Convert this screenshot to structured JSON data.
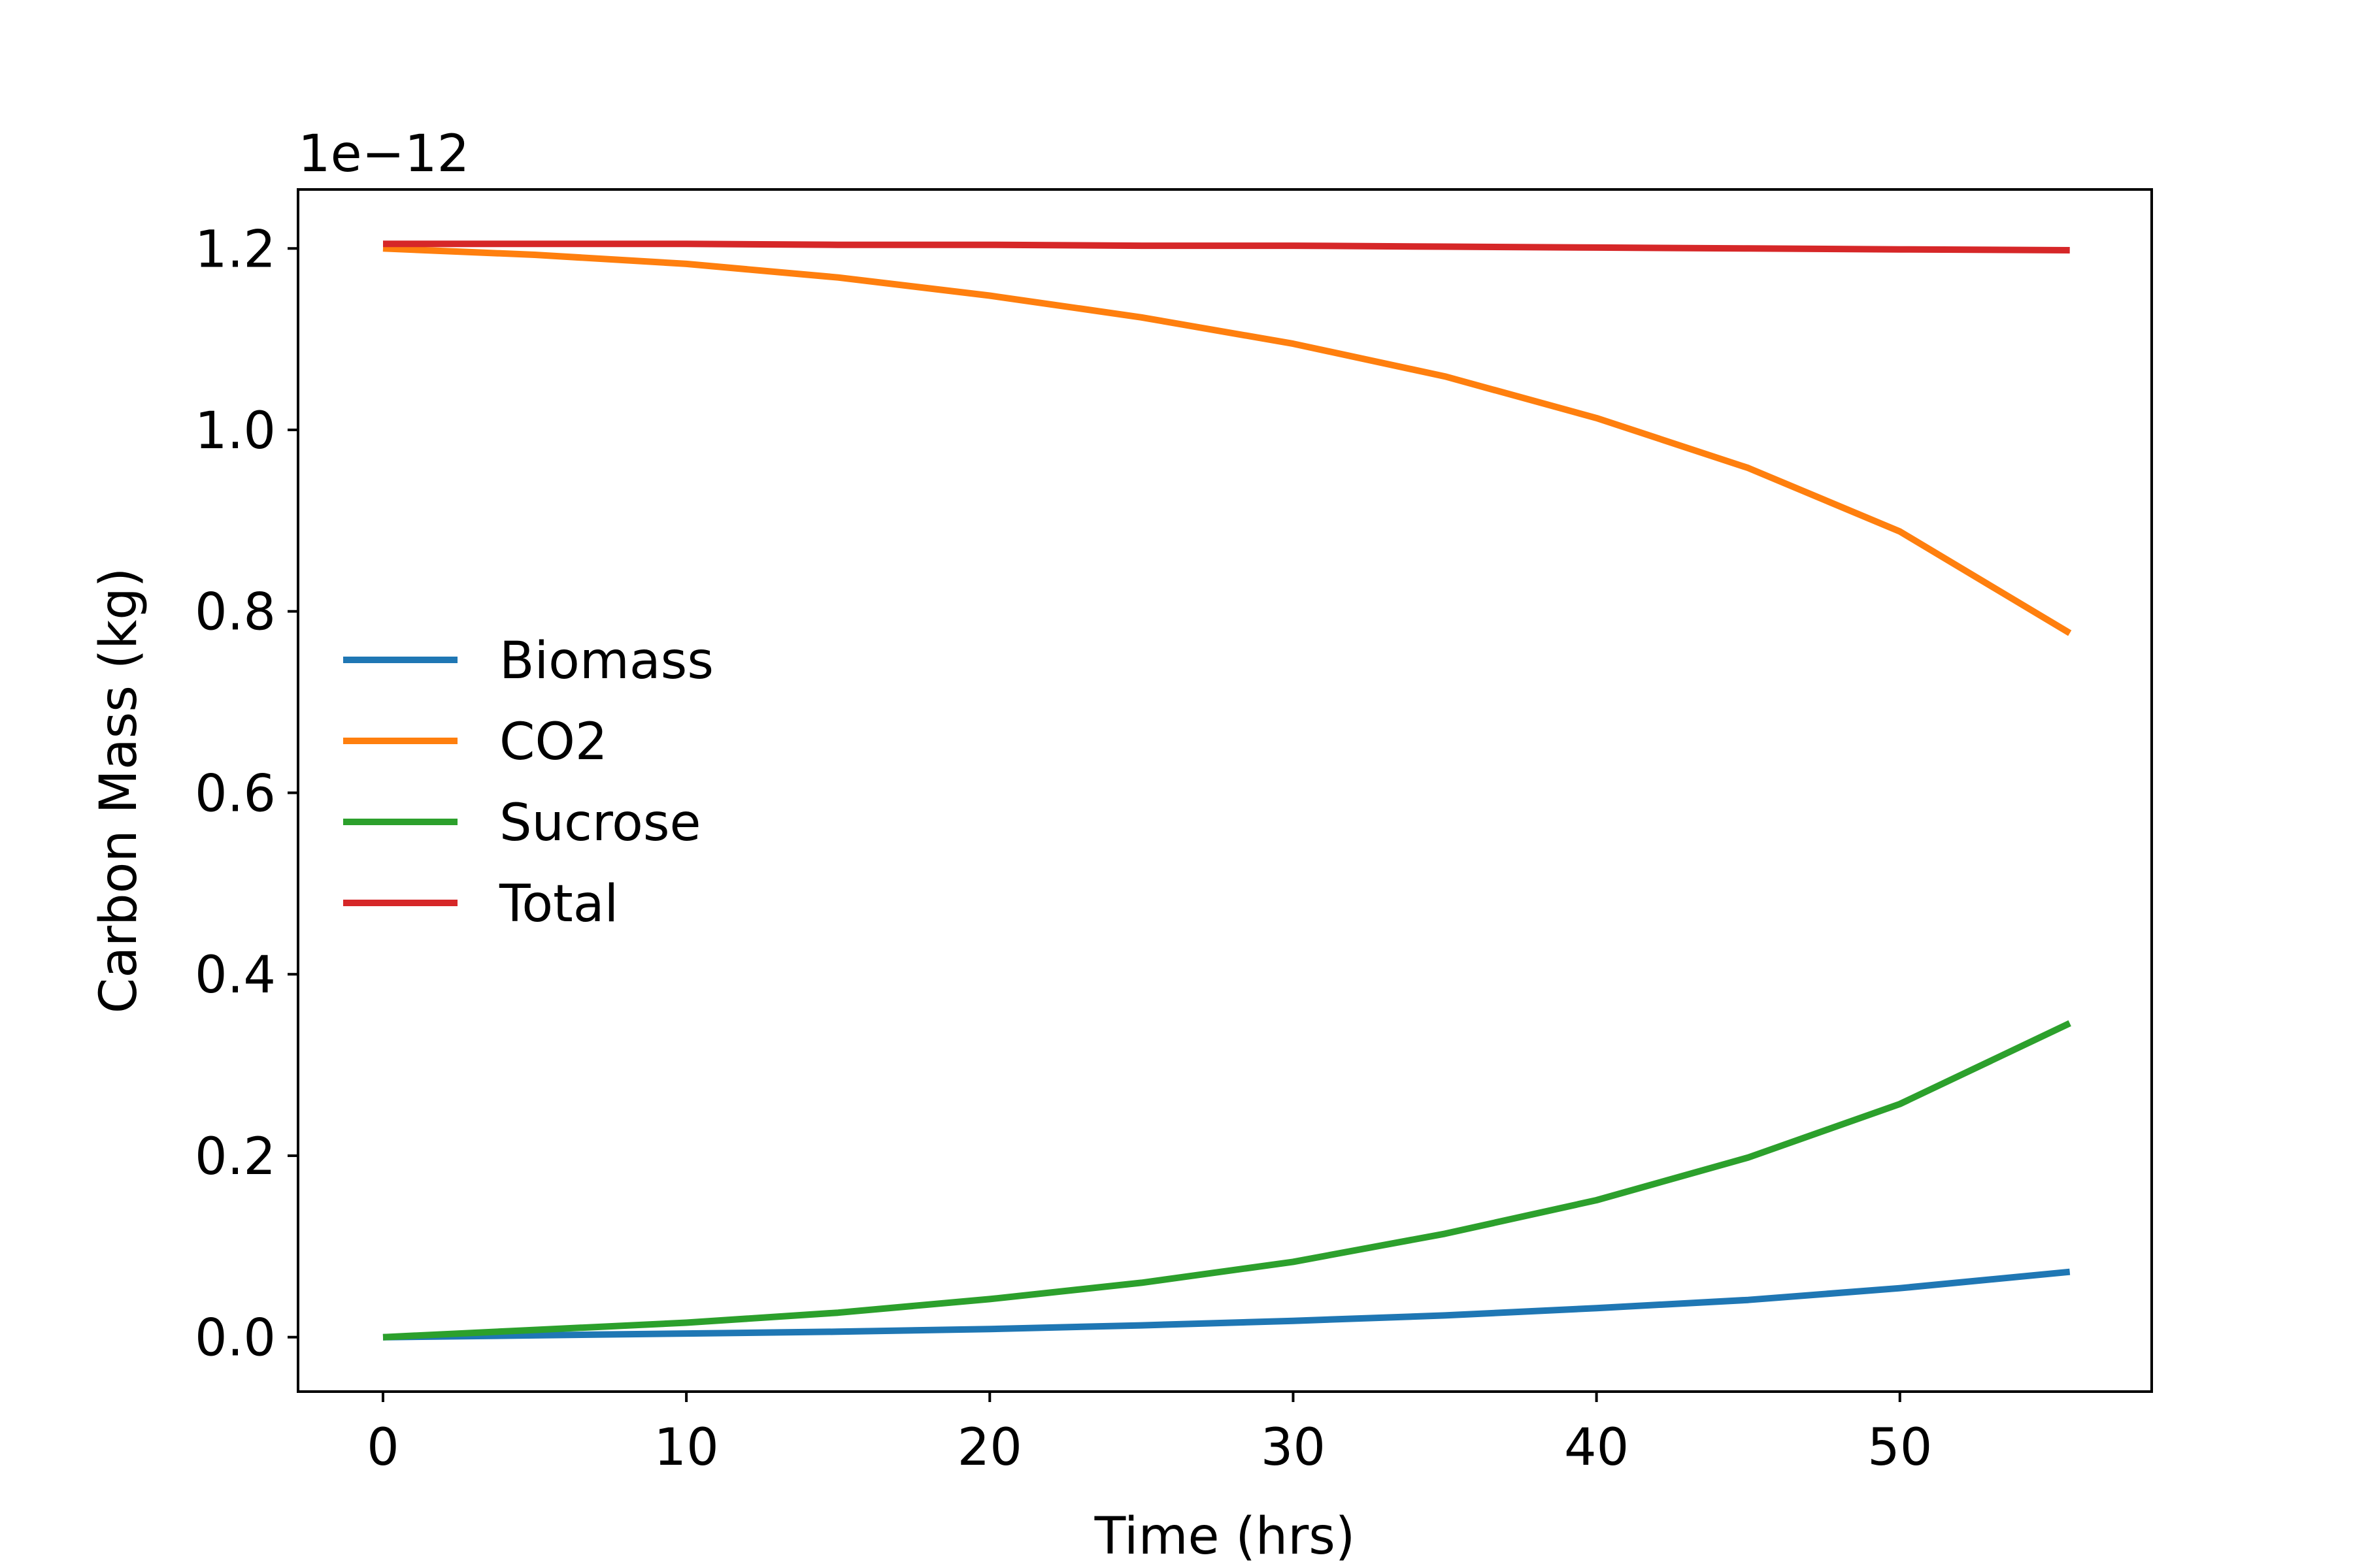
{
  "chart_data": {
    "type": "line",
    "title": "",
    "xlabel": "Time (hrs)",
    "ylabel": "Carbon Mass (kg)",
    "y_offset_label": "1e−12",
    "xlim": [
      -2.8,
      58.3
    ],
    "ylim": [
      -0.06,
      1.265
    ],
    "xticks": [
      0,
      10,
      20,
      30,
      40,
      50
    ],
    "xtick_labels": [
      "0",
      "10",
      "20",
      "30",
      "40",
      "50"
    ],
    "yticks": [
      0.0,
      0.2,
      0.4,
      0.6,
      0.8,
      1.0,
      1.2
    ],
    "ytick_labels": [
      "0.0",
      "0.2",
      "0.4",
      "0.6",
      "0.8",
      "1.0",
      "1.2"
    ],
    "grid": false,
    "legend_position": "center-left",
    "x": [
      0,
      5,
      10,
      15,
      20,
      25,
      30,
      35,
      40,
      45,
      50,
      55.6
    ],
    "series": [
      {
        "name": "Biomass",
        "color": "#1f77b4",
        "values": [
          0.0,
          0.002,
          0.004,
          0.006,
          0.009,
          0.013,
          0.018,
          0.024,
          0.032,
          0.041,
          0.054,
          0.072
        ]
      },
      {
        "name": "CO2",
        "color": "#ff7f0e",
        "values": [
          1.2,
          1.193,
          1.183,
          1.168,
          1.148,
          1.124,
          1.095,
          1.059,
          1.013,
          0.958,
          0.888,
          0.776
        ]
      },
      {
        "name": "Sucrose",
        "color": "#2ca02c",
        "values": [
          0.0,
          0.008,
          0.016,
          0.027,
          0.042,
          0.06,
          0.083,
          0.114,
          0.151,
          0.198,
          0.257,
          0.346
        ]
      },
      {
        "name": "Total",
        "color": "#d62728",
        "values": [
          1.205,
          1.205,
          1.205,
          1.204,
          1.204,
          1.203,
          1.203,
          1.202,
          1.201,
          1.2,
          1.199,
          1.198
        ]
      }
    ]
  }
}
